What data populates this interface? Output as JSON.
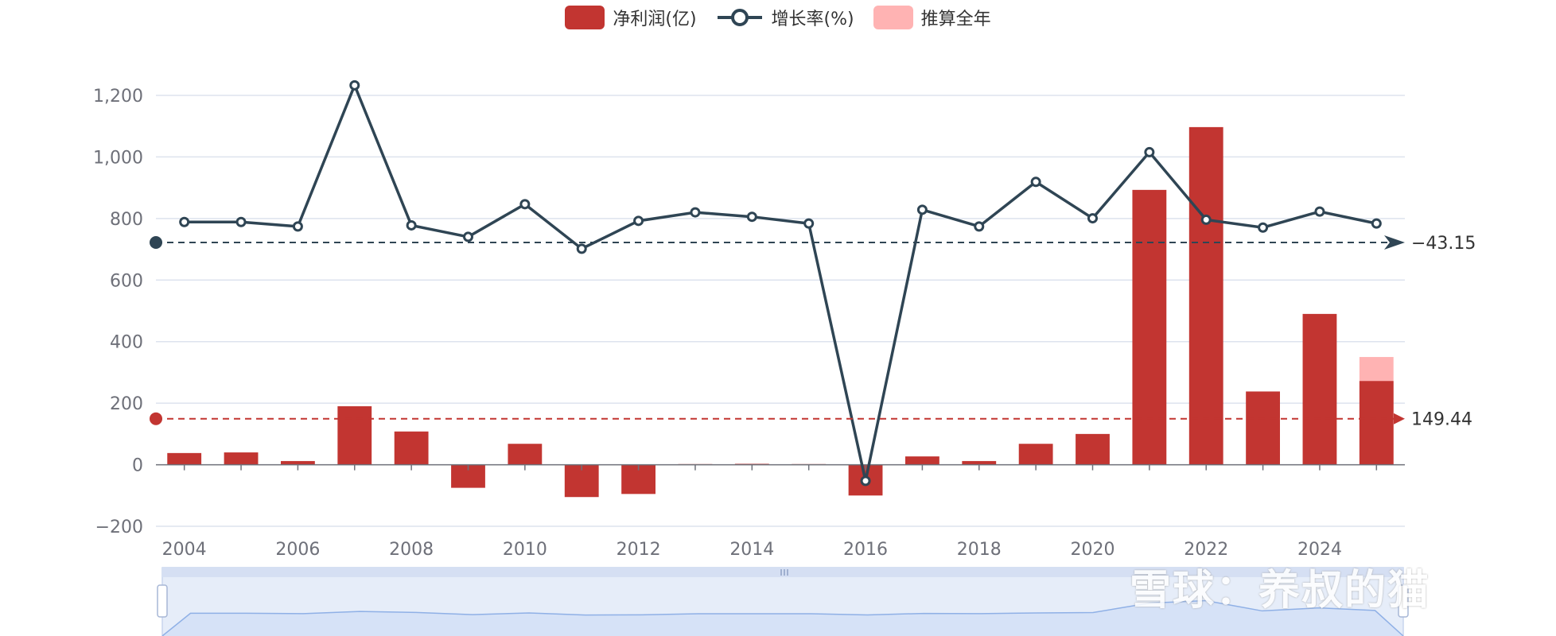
{
  "legend": {
    "profit": "净利润(亿)",
    "growth": "增长率(%)",
    "estimate": "推算全年"
  },
  "watermark": "雪球：养叔的猫",
  "colors": {
    "bar": "#c23531",
    "estimate": "#ffb3b3",
    "line": "#2f4554",
    "grid": "#dde3ee",
    "axis": "#6e7079",
    "slider_bg": "#e6edf9",
    "slider_fill": "#d6e2f7"
  },
  "chart_data": {
    "type": "bar",
    "categories": [
      "2004",
      "2005",
      "2006",
      "2007",
      "2008",
      "2009",
      "2010",
      "2011",
      "2012",
      "2013",
      "2014",
      "2015",
      "2016",
      "2017",
      "2018",
      "2019",
      "2020",
      "2021",
      "2022",
      "2023",
      "2024",
      "2025"
    ],
    "x_tick_labels": [
      "2004",
      "2006",
      "2008",
      "2010",
      "2012",
      "2014",
      "2016",
      "2018",
      "2020",
      "2022",
      "2024"
    ],
    "ylim": [
      -200,
      1200
    ],
    "y_ticks": [
      -200,
      0,
      200,
      400,
      600,
      800,
      1000,
      1200
    ],
    "y_tick_labels": [
      "−200",
      "0",
      "200",
      "400",
      "600",
      "800",
      "1,000",
      "1,200"
    ],
    "series": [
      {
        "name": "净利润(亿)",
        "type": "bar",
        "values": [
          38,
          40,
          12,
          190,
          108,
          -75,
          68,
          -105,
          -95,
          2,
          3,
          2,
          -100,
          27,
          12,
          68,
          100,
          893,
          1097,
          238,
          490,
          272
        ]
      },
      {
        "name": "推算全年",
        "type": "bar",
        "values": [
          null,
          null,
          null,
          null,
          null,
          null,
          null,
          null,
          null,
          null,
          null,
          null,
          null,
          null,
          null,
          null,
          null,
          null,
          null,
          null,
          null,
          350
        ]
      },
      {
        "name": "增长率(%)",
        "type": "line",
        "axis": "secondary",
        "values": [
          12,
          12,
          0,
          380,
          3,
          -28,
          60,
          -60,
          15,
          38,
          26,
          8,
          -685,
          45,
          0,
          120,
          22,
          200,
          18,
          -3,
          40,
          8
        ]
      }
    ],
    "mark_lines": [
      {
        "series": "净利润(亿)",
        "value": 149.44,
        "label": "149.44"
      },
      {
        "series": "增长率(%)",
        "value": -43.15,
        "label": "−43.15"
      }
    ],
    "grid": true,
    "legend_position": "top-center"
  }
}
